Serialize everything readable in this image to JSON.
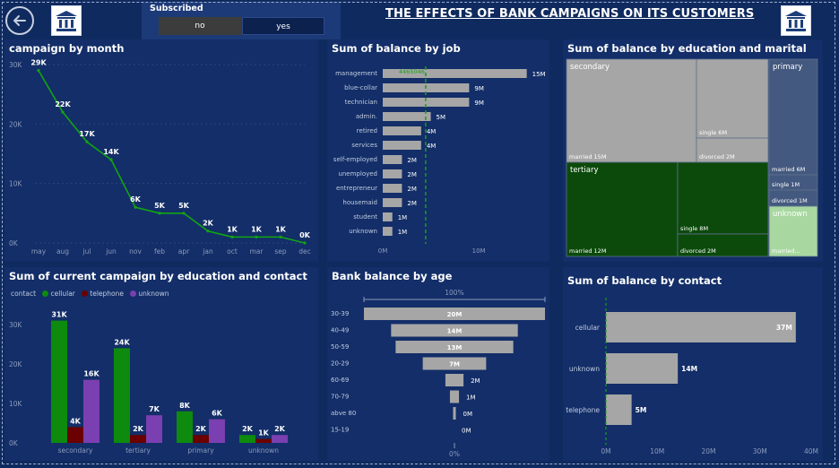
{
  "header": {
    "title": "THE EFFECTS OF BANK CAMPAIGNS ON ITS CUSTOMERS",
    "slicer_label": "Subscribed",
    "slicer_options": [
      "no",
      "yes"
    ],
    "icons": [
      "back-arrow-icon",
      "bank-icon"
    ]
  },
  "colors": {
    "background": "#0f2a5e",
    "panel": "#132e68",
    "bar_gray": "#a6a6a6",
    "green": "#0e7a0e",
    "dark_red": "#5c0000",
    "purple": "#7a3fb0",
    "dark_green": "#0c4a0c",
    "light_green": "#a8d8a0",
    "slate": "#44597f"
  },
  "chart_data": [
    {
      "id": "campaign_by_month",
      "type": "line",
      "title": "campaign by month",
      "categories": [
        "may",
        "aug",
        "jul",
        "jun",
        "nov",
        "feb",
        "apr",
        "jan",
        "oct",
        "mar",
        "sep",
        "dec"
      ],
      "values": [
        29,
        22,
        17,
        14,
        6,
        5,
        5,
        2,
        1,
        1,
        1,
        0
      ],
      "data_labels": [
        "29K",
        "22K",
        "17K",
        "14K",
        "6K",
        "5K",
        "5K",
        "2K",
        "1K",
        "1K",
        "1K",
        "0K"
      ],
      "yticks": [
        "0K",
        "10K",
        "20K",
        "30K"
      ],
      "ylim": [
        0,
        30
      ]
    },
    {
      "id": "balance_by_job",
      "type": "bar",
      "orientation": "horizontal",
      "title": "Sum of balance by job",
      "categories": [
        "management",
        "blue-collar",
        "technician",
        "admin.",
        "retired",
        "services",
        "self-employed",
        "unemployed",
        "entrepreneur",
        "housemaid",
        "student",
        "unknown"
      ],
      "values": [
        15,
        9,
        9,
        5,
        4,
        4,
        2,
        2,
        2,
        2,
        1,
        1
      ],
      "data_labels": [
        "15M",
        "9M",
        "9M",
        "5M",
        "4M",
        "4M",
        "2M",
        "2M",
        "2M",
        "2M",
        "1M",
        "1M"
      ],
      "reference_line_label": "4465046",
      "reference_value": 4.47,
      "xticks": [
        "0M",
        "10M"
      ],
      "xlim": [
        0,
        15.5
      ]
    },
    {
      "id": "balance_by_education_marital",
      "type": "treemap",
      "title": "Sum of balance by education and marital",
      "groups": [
        {
          "name": "secondary",
          "items": [
            {
              "label": "married 15M",
              "value": 15
            },
            {
              "label": "single 6M",
              "value": 6
            },
            {
              "label": "divorced 2M",
              "value": 2
            }
          ]
        },
        {
          "name": "tertiary",
          "items": [
            {
              "label": "married 12M",
              "value": 12
            },
            {
              "label": "single 8M",
              "value": 8
            },
            {
              "label": "divorced 2M",
              "value": 2
            }
          ]
        },
        {
          "name": "primary",
          "items": [
            {
              "label": "married 6M",
              "value": 6
            },
            {
              "label": "single 1M",
              "value": 1
            },
            {
              "label": "divorced 1M",
              "value": 1
            }
          ]
        },
        {
          "name": "unknown",
          "items": [
            {
              "label": "married...",
              "value": 1
            }
          ]
        }
      ]
    },
    {
      "id": "campaign_by_education_contact",
      "type": "bar",
      "title": "Sum of current campaign by education and contact",
      "legend_title": "contact",
      "categories": [
        "secondary",
        "tertiary",
        "primary",
        "unknown"
      ],
      "series": [
        {
          "name": "cellular",
          "values": [
            31,
            24,
            8,
            2
          ],
          "labels": [
            "31K",
            "24K",
            "8K",
            "2K"
          ]
        },
        {
          "name": "telephone",
          "values": [
            4,
            2,
            2,
            1
          ],
          "labels": [
            "4K",
            "2K",
            "2K",
            "1K"
          ]
        },
        {
          "name": "unknown",
          "values": [
            16,
            7,
            6,
            2
          ],
          "labels": [
            "16K",
            "7K",
            "6K",
            "2K"
          ]
        }
      ],
      "yticks": [
        "0K",
        "10K",
        "20K",
        "30K"
      ],
      "ylim": [
        0,
        33
      ]
    },
    {
      "id": "bank_balance_by_age",
      "type": "bar",
      "orientation": "funnel",
      "title": "Bank balance by age",
      "top_label": "100%",
      "bottom_label": "0%",
      "categories": [
        "30-39",
        "40-49",
        "50-59",
        "20-29",
        "60-69",
        "70-79",
        "abve 80",
        "15-19"
      ],
      "values": [
        20,
        14,
        13,
        7,
        2,
        1,
        0.3,
        0
      ],
      "data_labels": [
        "20M",
        "14M",
        "13M",
        "7M",
        "2M",
        "1M",
        "0M",
        "0M"
      ]
    },
    {
      "id": "balance_by_contact",
      "type": "bar",
      "orientation": "horizontal",
      "title": "Sum of balance by contact",
      "categories": [
        "cellular",
        "unknown",
        "telephone"
      ],
      "values": [
        37,
        14,
        5
      ],
      "data_labels": [
        "37M",
        "14M",
        "5M"
      ],
      "xticks": [
        "0M",
        "10M",
        "20M",
        "30M",
        "40M"
      ],
      "xlim": [
        0,
        40
      ]
    }
  ]
}
